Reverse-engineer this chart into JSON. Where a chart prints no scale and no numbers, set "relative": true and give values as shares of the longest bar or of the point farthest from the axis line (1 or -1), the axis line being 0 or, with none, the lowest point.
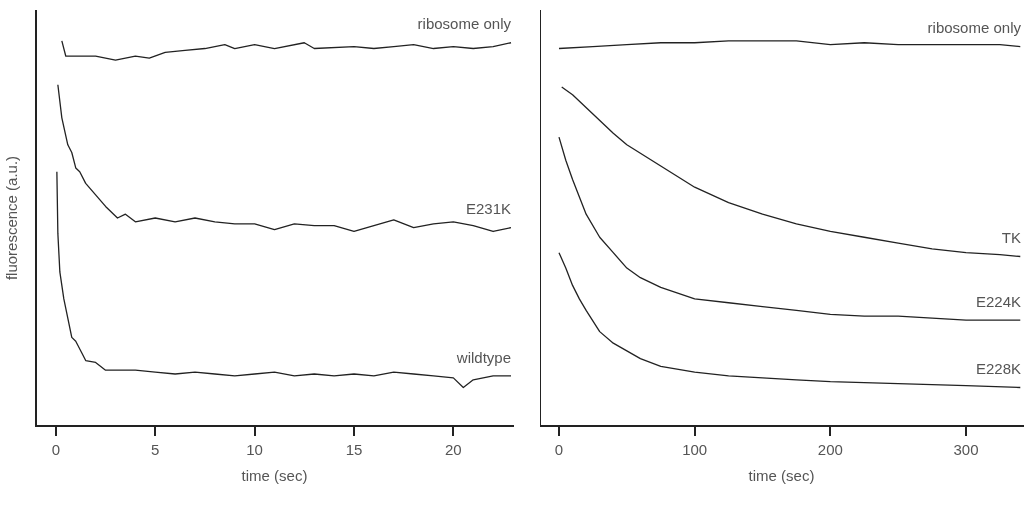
{
  "chart_data": [
    {
      "type": "line",
      "relative": true,
      "xlabel": "time (sec)",
      "ylabel": "fluorescence (a.u.)",
      "xlim": [
        -1,
        23
      ],
      "xticks": [
        0,
        5,
        10,
        15,
        20
      ],
      "grid": false,
      "legend": false,
      "marker": "none",
      "line_style": "solid",
      "tick_labels": "x",
      "series": [
        {
          "name": "ribosome only",
          "color": "#222222",
          "x": [
            0.3,
            0.5,
            1,
            2,
            3,
            4,
            4.7,
            5.5,
            6.5,
            7.5,
            8.5,
            9,
            10,
            11,
            12.5,
            13,
            15,
            16,
            17,
            18,
            19,
            20,
            21,
            22,
            22.9
          ],
          "values": [
            1.0,
            0.96,
            0.96,
            0.96,
            0.95,
            0.96,
            0.955,
            0.97,
            0.975,
            0.98,
            0.99,
            0.98,
            0.99,
            0.98,
            0.995,
            0.98,
            0.985,
            0.98,
            0.985,
            0.99,
            0.98,
            0.985,
            0.98,
            0.985,
            0.995
          ]
        },
        {
          "name": "E231K",
          "color": "#222222",
          "x": [
            0.1,
            0.3,
            0.6,
            0.8,
            1,
            1.2,
            1.5,
            2,
            2.5,
            3.1,
            3.5,
            4,
            5,
            6,
            7,
            8,
            9,
            10,
            11,
            12,
            13,
            14,
            15,
            16,
            17,
            18,
            19,
            20,
            21,
            22,
            22.9
          ],
          "values": [
            0.886,
            0.8,
            0.73,
            0.71,
            0.67,
            0.66,
            0.63,
            0.6,
            0.57,
            0.54,
            0.55,
            0.53,
            0.54,
            0.53,
            0.54,
            0.53,
            0.525,
            0.525,
            0.51,
            0.525,
            0.52,
            0.52,
            0.505,
            0.52,
            0.535,
            0.515,
            0.525,
            0.53,
            0.52,
            0.505,
            0.515
          ]
        },
        {
          "name": "wildtype",
          "color": "#222222",
          "x": [
            0.05,
            0.1,
            0.2,
            0.4,
            0.6,
            0.8,
            1,
            1.3,
            1.5,
            2,
            2.5,
            3,
            4,
            5,
            6,
            7,
            8,
            9,
            10,
            11,
            12,
            13,
            14,
            15,
            16,
            17,
            18,
            19,
            20,
            20.5,
            21,
            22,
            22.9
          ],
          "values": [
            0.66,
            0.5,
            0.4,
            0.33,
            0.28,
            0.23,
            0.22,
            0.19,
            0.17,
            0.165,
            0.145,
            0.145,
            0.145,
            0.14,
            0.135,
            0.14,
            0.135,
            0.13,
            0.135,
            0.14,
            0.13,
            0.135,
            0.13,
            0.135,
            0.13,
            0.14,
            0.135,
            0.13,
            0.125,
            0.1,
            0.12,
            0.13,
            0.13
          ]
        }
      ]
    },
    {
      "type": "line",
      "relative": true,
      "xlabel": "time (sec)",
      "xlim": [
        -14,
        342
      ],
      "xticks": [
        0,
        100,
        200,
        300
      ],
      "grid": false,
      "legend": false,
      "marker": "none",
      "line_style": "solid",
      "tick_labels": "x",
      "series": [
        {
          "name": "ribosome only",
          "color": "#222222",
          "x": [
            0,
            25,
            50,
            75,
            100,
            125,
            150,
            175,
            200,
            225,
            250,
            275,
            300,
            325,
            340
          ],
          "values": [
            0.98,
            0.985,
            0.99,
            0.995,
            0.995,
            1.0,
            1.0,
            1.0,
            0.99,
            0.995,
            0.99,
            0.99,
            0.99,
            0.99,
            0.985
          ]
        },
        {
          "name": "TK",
          "color": "#222222",
          "x": [
            2,
            10,
            25,
            40,
            50,
            75,
            100,
            125,
            150,
            175,
            200,
            225,
            250,
            275,
            300,
            325,
            340
          ],
          "values": [
            0.88,
            0.86,
            0.81,
            0.76,
            0.73,
            0.675,
            0.62,
            0.58,
            0.55,
            0.525,
            0.505,
            0.49,
            0.475,
            0.46,
            0.45,
            0.445,
            0.44
          ]
        },
        {
          "name": "E224K",
          "color": "#222222",
          "x": [
            0,
            5,
            10,
            20,
            30,
            40,
            50,
            60,
            75,
            100,
            125,
            150,
            175,
            200,
            225,
            250,
            275,
            300,
            340
          ],
          "values": [
            0.75,
            0.69,
            0.64,
            0.55,
            0.49,
            0.45,
            0.41,
            0.385,
            0.36,
            0.33,
            0.32,
            0.31,
            0.3,
            0.29,
            0.285,
            0.285,
            0.28,
            0.275,
            0.275
          ]
        },
        {
          "name": "E228K",
          "color": "#222222",
          "x": [
            0,
            5,
            10,
            15,
            20,
            30,
            40,
            50,
            60,
            75,
            100,
            125,
            150,
            175,
            200,
            250,
            300,
            340
          ],
          "values": [
            0.45,
            0.41,
            0.365,
            0.33,
            0.3,
            0.245,
            0.215,
            0.195,
            0.175,
            0.155,
            0.14,
            0.13,
            0.125,
            0.12,
            0.115,
            0.11,
            0.105,
            0.1
          ]
        }
      ]
    }
  ]
}
